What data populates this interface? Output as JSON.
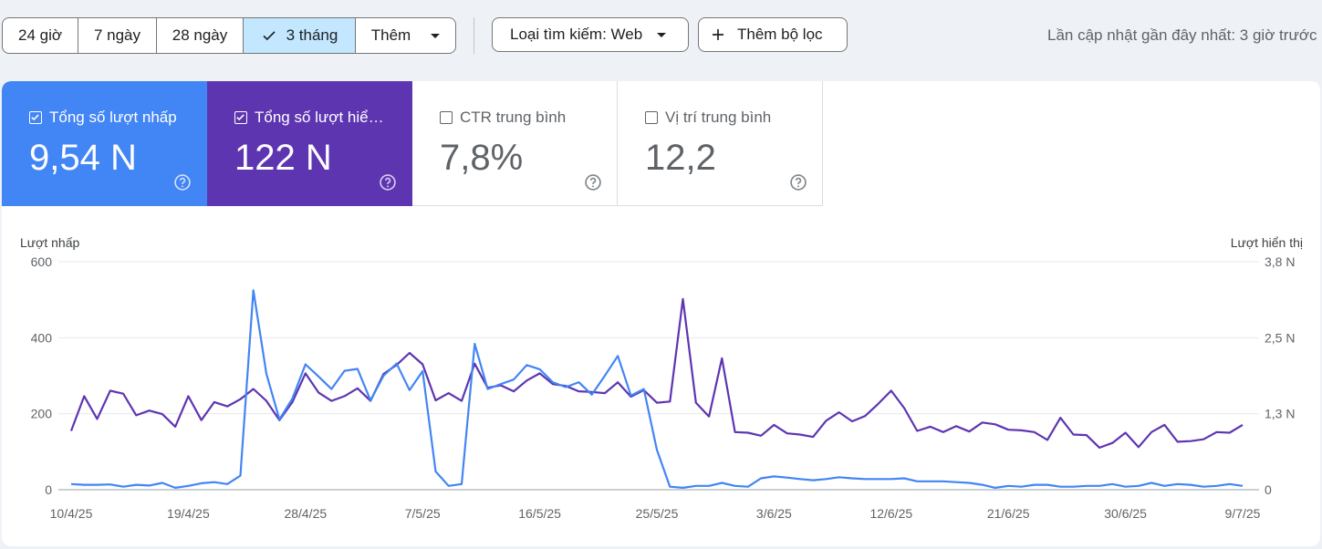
{
  "toolbar": {
    "ranges": [
      {
        "label": "24 giờ",
        "selected": false
      },
      {
        "label": "7 ngày",
        "selected": false
      },
      {
        "label": "28 ngày",
        "selected": false
      },
      {
        "label": "3 tháng",
        "selected": true
      },
      {
        "label": "Thêm",
        "selected": false
      }
    ],
    "search_type": "Loại tìm kiếm: Web",
    "add_filter": "Thêm bộ lọc",
    "last_updated": "Lần cập nhật gần đây nhất: 3 giờ trước"
  },
  "metrics": [
    {
      "label": "Tổng số lượt nhấp",
      "value": "9,54 N",
      "checked": true,
      "color": "#4285f4"
    },
    {
      "label": "Tổng số lượt hiể…",
      "value": "122 N",
      "checked": true,
      "color": "#5e35b1"
    },
    {
      "label": "CTR trung bình",
      "value": "7,8%",
      "checked": false
    },
    {
      "label": "Vị trí trung bình",
      "value": "12,2",
      "checked": false
    }
  ],
  "chart_data": {
    "type": "line",
    "left_axis_label": "Lượt nhấp",
    "right_axis_label": "Lượt hiển thị",
    "left_ticks": [
      "600",
      "400",
      "200",
      "0"
    ],
    "right_ticks": [
      "3,8 N",
      "2,5 N",
      "1,3 N",
      "0"
    ],
    "ylim_left": [
      0,
      600
    ],
    "ylim_right": [
      0,
      3800
    ],
    "x_tick_labels": [
      "10/4/25",
      "19/4/25",
      "28/4/25",
      "7/5/25",
      "16/5/25",
      "25/5/25",
      "3/6/25",
      "12/6/25",
      "21/6/25",
      "30/6/25",
      "9/7/25"
    ],
    "grid": true,
    "series": [
      {
        "name": "Lượt nhấp",
        "axis": "left",
        "color": "#4285f4",
        "values": [
          15,
          13,
          13,
          14,
          8,
          13,
          11,
          18,
          5,
          10,
          17,
          20,
          15,
          37,
          525,
          305,
          185,
          240,
          330,
          298,
          265,
          313,
          318,
          235,
          300,
          332,
          262,
          312,
          48,
          10,
          15,
          384,
          265,
          278,
          290,
          328,
          317,
          283,
          270,
          283,
          250,
          300,
          352,
          248,
          265,
          105,
          8,
          5,
          10,
          10,
          18,
          10,
          8,
          30,
          35,
          32,
          28,
          25,
          28,
          33,
          30,
          28,
          28,
          28,
          30,
          22,
          22,
          22,
          20,
          18,
          13,
          5,
          10,
          8,
          13,
          13,
          8,
          8,
          10,
          10,
          15,
          8,
          10,
          18,
          10,
          15,
          13,
          8,
          10,
          15,
          10
        ]
      },
      {
        "name": "Lượt hiển thị",
        "axis": "right",
        "color": "#5e35b1",
        "values": [
          980,
          1560,
          1180,
          1650,
          1600,
          1240,
          1320,
          1260,
          1050,
          1560,
          1160,
          1460,
          1390,
          1510,
          1680,
          1480,
          1160,
          1460,
          1940,
          1620,
          1480,
          1560,
          1690,
          1480,
          1930,
          2080,
          2280,
          2090,
          1490,
          1610,
          1480,
          2100,
          1700,
          1740,
          1640,
          1820,
          1940,
          1760,
          1730,
          1640,
          1630,
          1610,
          1790,
          1550,
          1660,
          1450,
          1470,
          3180,
          1450,
          1220,
          2190,
          960,
          950,
          900,
          1080,
          940,
          920,
          880,
          1150,
          1290,
          1140,
          1230,
          1430,
          1650,
          1360,
          980,
          1050,
          960,
          1060,
          970,
          1120,
          1090,
          1000,
          990,
          960,
          830,
          1200,
          920,
          910,
          700,
          780,
          950,
          710,
          960,
          1080,
          800,
          810,
          840,
          960,
          950,
          1080
        ]
      }
    ]
  }
}
